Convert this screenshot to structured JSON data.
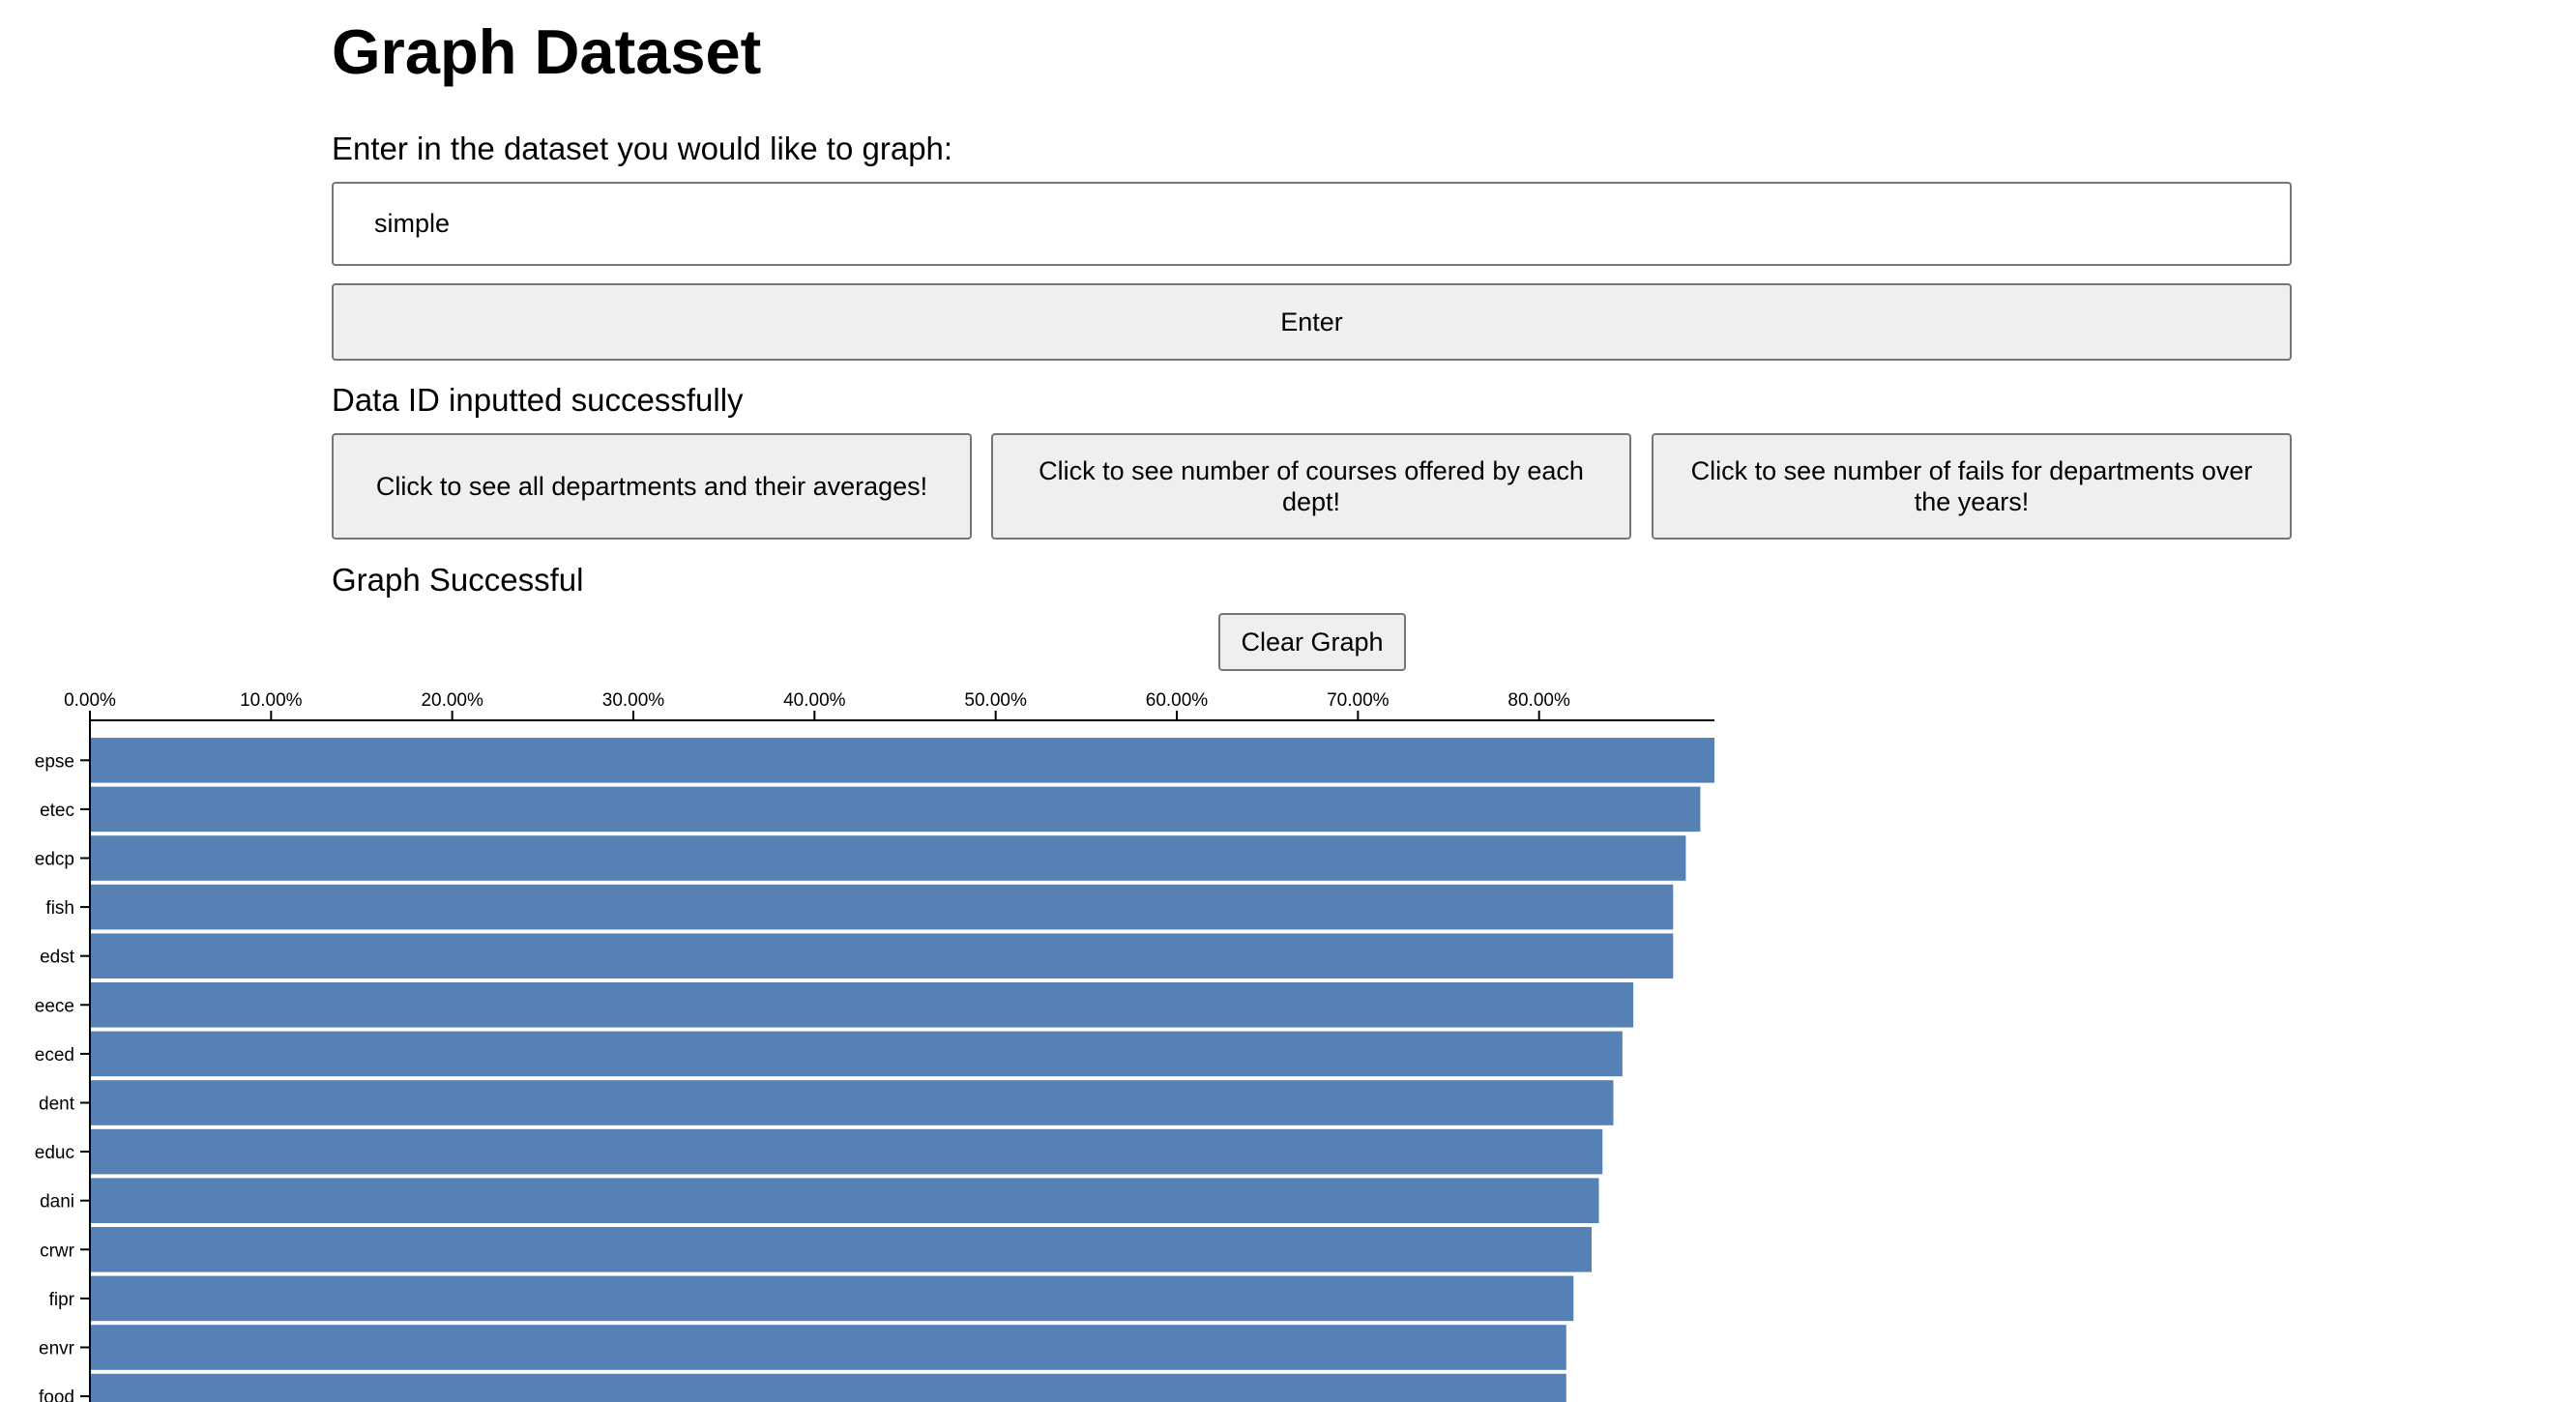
{
  "page": {
    "title": "Graph Dataset",
    "prompt": "Enter in the dataset you would like to graph:",
    "dataset_input": {
      "value": "simple"
    },
    "enter_label": "Enter",
    "status_message": "Data ID inputted successfully",
    "options": [
      "Click to see all departments and their averages!",
      "Click to see number of courses offered by each dept!",
      "Click to see number of fails for departments over the years!"
    ],
    "graph_status": "Graph Successful",
    "clear_label": "Clear Graph"
  },
  "colors": {
    "bar": "#5581b4",
    "button_bg": "#efefef",
    "button_border": "#767676"
  },
  "chart_data": {
    "type": "bar",
    "orientation": "horizontal",
    "x_axis_position": "top",
    "tick_labels": [
      "0.00%",
      "10.00%",
      "20.00%",
      "30.00%",
      "40.00%",
      "50.00%",
      "60.00%",
      "70.00%",
      "80.00%"
    ],
    "xlim": [
      0,
      0.8968
    ],
    "categories": [
      "epse",
      "etec",
      "edcp",
      "fish",
      "edst",
      "eece",
      "eced",
      "dent",
      "educ",
      "dani",
      "crwr",
      "fipr",
      "envr",
      "food"
    ],
    "values": [
      0.8968,
      0.889,
      0.881,
      0.874,
      0.874,
      0.852,
      0.846,
      0.841,
      0.835,
      0.833,
      0.829,
      0.819,
      0.815,
      0.815
    ],
    "xlabel": "",
    "ylabel": "",
    "title": ""
  }
}
